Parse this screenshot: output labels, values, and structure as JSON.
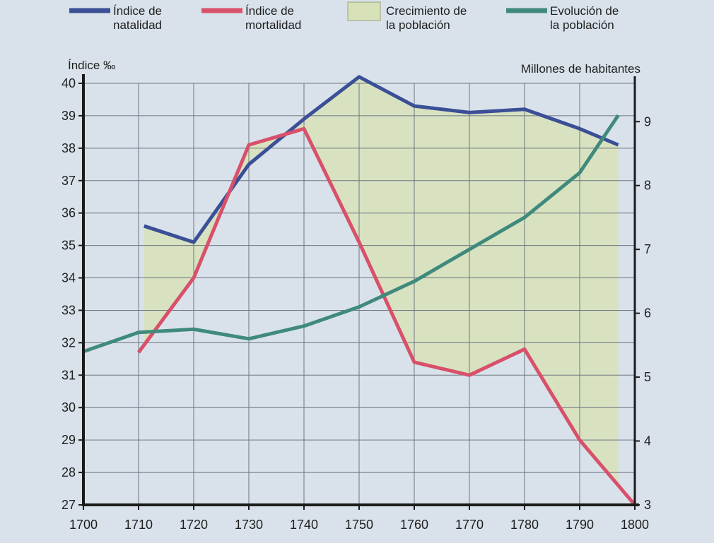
{
  "chart_data": {
    "type": "line",
    "x": [
      1700,
      1710,
      1720,
      1730,
      1740,
      1750,
      1760,
      1770,
      1780,
      1790,
      1800
    ],
    "xlim": [
      1700,
      1800
    ],
    "y_left_label": "Índice ‰",
    "y_left_lim": [
      27,
      40
    ],
    "y_left_ticks": [
      27,
      28,
      29,
      30,
      31,
      32,
      33,
      34,
      35,
      36,
      37,
      38,
      39,
      40
    ],
    "y_right_label": "Millones de habitantes",
    "y_right_lim": [
      3,
      9.6
    ],
    "y_right_ticks": [
      3,
      4,
      5,
      6,
      7,
      8,
      9
    ],
    "grid": true,
    "legend": {
      "position": "top",
      "entries": [
        {
          "lines": [
            "Índice de",
            "natalidad"
          ],
          "swatch": "line",
          "color": "#3a4f96"
        },
        {
          "lines": [
            "Índice de",
            "mortalidad"
          ],
          "swatch": "line",
          "color": "#d8506a"
        },
        {
          "lines": [
            "Crecimiento de",
            "la población"
          ],
          "swatch": "area",
          "color": "#d7e2b8"
        },
        {
          "lines": [
            "Evolución de",
            "la población"
          ],
          "swatch": "line",
          "color": "#3f8a7c"
        }
      ]
    },
    "series": [
      {
        "name": "Índice de natalidad",
        "axis": "left",
        "color": "#3a4f96",
        "points": [
          [
            1711,
            35.6
          ],
          [
            1720,
            35.1
          ],
          [
            1730,
            37.5
          ],
          [
            1740,
            38.9
          ],
          [
            1750,
            40.2
          ],
          [
            1760,
            39.3
          ],
          [
            1770,
            39.1
          ],
          [
            1780,
            39.2
          ],
          [
            1790,
            38.6
          ],
          [
            1797,
            38.1
          ]
        ]
      },
      {
        "name": "Índice de mortalidad",
        "axis": "left",
        "color": "#d8506a",
        "points": [
          [
            1710,
            31.7
          ],
          [
            1720,
            34.0
          ],
          [
            1730,
            38.1
          ],
          [
            1740,
            38.6
          ],
          [
            1750,
            35.1
          ],
          [
            1760,
            31.4
          ],
          [
            1770,
            31.0
          ],
          [
            1780,
            31.8
          ],
          [
            1790,
            29.0
          ],
          [
            1800,
            27.0
          ]
        ]
      },
      {
        "name": "Evolución de la población",
        "axis": "right",
        "color": "#3f8a7c",
        "points": [
          [
            1700,
            5.4
          ],
          [
            1710,
            5.7
          ],
          [
            1720,
            5.75
          ],
          [
            1730,
            5.6
          ],
          [
            1740,
            5.8
          ],
          [
            1750,
            6.1
          ],
          [
            1760,
            6.5
          ],
          [
            1770,
            7.0
          ],
          [
            1780,
            7.5
          ],
          [
            1790,
            8.2
          ],
          [
            1797,
            9.1
          ]
        ]
      }
    ],
    "area": {
      "name": "Crecimiento de la población",
      "color": "#d7e2b8",
      "between": [
        "Índice de natalidad",
        "Índice de mortalidad"
      ]
    }
  }
}
